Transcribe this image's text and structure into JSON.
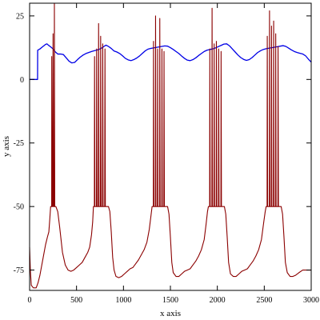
{
  "chart_data": {
    "type": "line",
    "title": "",
    "xlabel": "x axis",
    "ylabel": "y axis",
    "xlim": [
      0,
      3000
    ],
    "ylim": [
      -83,
      30
    ],
    "xticks": [
      0,
      500,
      1000,
      1500,
      2000,
      2500,
      3000
    ],
    "yticks": [
      25,
      0,
      -25,
      -50,
      -75
    ],
    "grid": false,
    "legend": "none",
    "series": [
      {
        "color": "#0000e6",
        "points": [
          [
            0,
            0
          ],
          [
            85,
            0
          ],
          [
            86,
            11.5
          ],
          [
            110,
            12
          ],
          [
            130,
            12.6
          ],
          [
            150,
            13.2
          ],
          [
            170,
            13.8
          ],
          [
            185,
            14.0
          ],
          [
            200,
            13.5
          ],
          [
            225,
            12.8
          ],
          [
            250,
            12.0
          ],
          [
            275,
            10.8
          ],
          [
            300,
            10.0
          ],
          [
            330,
            10.0
          ],
          [
            360,
            9.8
          ],
          [
            390,
            8.5
          ],
          [
            420,
            7.2
          ],
          [
            450,
            6.5
          ],
          [
            480,
            6.7
          ],
          [
            510,
            7.8
          ],
          [
            540,
            8.8
          ],
          [
            570,
            9.6
          ],
          [
            600,
            10.2
          ],
          [
            630,
            10.6
          ],
          [
            660,
            11.0
          ],
          [
            690,
            11.3
          ],
          [
            720,
            11.6
          ],
          [
            750,
            12.0
          ],
          [
            775,
            12.5
          ],
          [
            800,
            13.2
          ],
          [
            815,
            13.5
          ],
          [
            840,
            13.0
          ],
          [
            870,
            12.2
          ],
          [
            900,
            11.2
          ],
          [
            930,
            10.8
          ],
          [
            960,
            10.2
          ],
          [
            990,
            9.3
          ],
          [
            1020,
            8.3
          ],
          [
            1050,
            7.7
          ],
          [
            1080,
            7.4
          ],
          [
            1110,
            7.8
          ],
          [
            1140,
            8.4
          ],
          [
            1170,
            9.2
          ],
          [
            1200,
            10.2
          ],
          [
            1230,
            11.2
          ],
          [
            1260,
            11.9
          ],
          [
            1290,
            12.2
          ],
          [
            1320,
            12.4
          ],
          [
            1350,
            12.6
          ],
          [
            1380,
            12.8
          ],
          [
            1410,
            13.0
          ],
          [
            1440,
            13.2
          ],
          [
            1470,
            13.1
          ],
          [
            1500,
            12.5
          ],
          [
            1530,
            11.8
          ],
          [
            1560,
            11.0
          ],
          [
            1590,
            10.2
          ],
          [
            1620,
            9.2
          ],
          [
            1650,
            8.3
          ],
          [
            1680,
            7.6
          ],
          [
            1710,
            7.4
          ],
          [
            1740,
            7.8
          ],
          [
            1770,
            8.5
          ],
          [
            1800,
            9.4
          ],
          [
            1830,
            10.2
          ],
          [
            1860,
            11.0
          ],
          [
            1890,
            11.5
          ],
          [
            1920,
            11.8
          ],
          [
            1950,
            12.0
          ],
          [
            1980,
            12.4
          ],
          [
            2010,
            12.9
          ],
          [
            2040,
            13.4
          ],
          [
            2070,
            13.9
          ],
          [
            2100,
            14.0
          ],
          [
            2130,
            13.2
          ],
          [
            2160,
            12.0
          ],
          [
            2190,
            10.8
          ],
          [
            2220,
            9.6
          ],
          [
            2250,
            8.6
          ],
          [
            2280,
            7.9
          ],
          [
            2310,
            7.5
          ],
          [
            2340,
            7.8
          ],
          [
            2370,
            8.6
          ],
          [
            2400,
            9.6
          ],
          [
            2430,
            10.6
          ],
          [
            2460,
            11.3
          ],
          [
            2490,
            11.8
          ],
          [
            2520,
            12.1
          ],
          [
            2550,
            12.3
          ],
          [
            2580,
            12.5
          ],
          [
            2610,
            12.7
          ],
          [
            2640,
            12.9
          ],
          [
            2670,
            13.1
          ],
          [
            2700,
            13.3
          ],
          [
            2730,
            13.0
          ],
          [
            2760,
            12.3
          ],
          [
            2790,
            11.6
          ],
          [
            2820,
            11.0
          ],
          [
            2850,
            10.6
          ],
          [
            2880,
            10.3
          ],
          [
            2910,
            10.0
          ],
          [
            2940,
            9.3
          ],
          [
            2970,
            8.0
          ],
          [
            3000,
            6.8
          ]
        ]
      },
      {
        "color": "#8b0000",
        "points": [
          [
            0,
            -66
          ],
          [
            8,
            -75
          ],
          [
            18,
            -81
          ],
          [
            40,
            -82
          ],
          [
            70,
            -82
          ],
          [
            90,
            -80
          ],
          [
            110,
            -77
          ],
          [
            130,
            -73
          ],
          [
            150,
            -69
          ],
          [
            170,
            -65
          ],
          [
            190,
            -62
          ],
          [
            205,
            -60
          ],
          [
            215,
            -55
          ],
          [
            224,
            -50
          ],
          [
            235,
            -50
          ],
          [
            236,
            9
          ],
          [
            240,
            -50
          ],
          [
            246,
            -50
          ],
          [
            250,
            18
          ],
          [
            254,
            -50
          ],
          [
            262,
            -50
          ],
          [
            264,
            30
          ],
          [
            268,
            -50
          ],
          [
            280,
            -50
          ],
          [
            300,
            -52
          ],
          [
            320,
            -58
          ],
          [
            350,
            -68
          ],
          [
            380,
            -73
          ],
          [
            410,
            -75
          ],
          [
            440,
            -75.5
          ],
          [
            470,
            -75
          ],
          [
            500,
            -74
          ],
          [
            530,
            -73
          ],
          [
            560,
            -72
          ],
          [
            590,
            -70
          ],
          [
            620,
            -68
          ],
          [
            640,
            -66
          ],
          [
            660,
            -61
          ],
          [
            672,
            -56
          ],
          [
            680,
            -50
          ],
          [
            690,
            -50
          ],
          [
            692,
            9
          ],
          [
            696,
            -50
          ],
          [
            712,
            -50
          ],
          [
            714,
            12
          ],
          [
            718,
            -50
          ],
          [
            732,
            -50
          ],
          [
            735,
            22
          ],
          [
            739,
            -50
          ],
          [
            754,
            -50
          ],
          [
            757,
            17
          ],
          [
            761,
            -50
          ],
          [
            776,
            -50
          ],
          [
            779,
            14
          ],
          [
            783,
            -50
          ],
          [
            800,
            -50
          ],
          [
            803,
            12
          ],
          [
            807,
            -50
          ],
          [
            840,
            -50
          ],
          [
            855,
            -52
          ],
          [
            870,
            -60
          ],
          [
            885,
            -70
          ],
          [
            900,
            -75
          ],
          [
            920,
            -77.5
          ],
          [
            950,
            -78
          ],
          [
            980,
            -77.5
          ],
          [
            1010,
            -76.5
          ],
          [
            1040,
            -75.5
          ],
          [
            1070,
            -74.5
          ],
          [
            1100,
            -74
          ],
          [
            1130,
            -72.5
          ],
          [
            1160,
            -71
          ],
          [
            1190,
            -69
          ],
          [
            1220,
            -67
          ],
          [
            1250,
            -64
          ],
          [
            1275,
            -59
          ],
          [
            1295,
            -53
          ],
          [
            1305,
            -50
          ],
          [
            1318,
            -50
          ],
          [
            1320,
            15
          ],
          [
            1324,
            -50
          ],
          [
            1340,
            -50
          ],
          [
            1342,
            25
          ],
          [
            1346,
            -50
          ],
          [
            1362,
            -50
          ],
          [
            1364,
            12
          ],
          [
            1368,
            -50
          ],
          [
            1385,
            -50
          ],
          [
            1387,
            24
          ],
          [
            1391,
            -50
          ],
          [
            1408,
            -50
          ],
          [
            1410,
            12
          ],
          [
            1414,
            -50
          ],
          [
            1430,
            -50
          ],
          [
            1432,
            11
          ],
          [
            1436,
            -50
          ],
          [
            1470,
            -50
          ],
          [
            1485,
            -53
          ],
          [
            1500,
            -62
          ],
          [
            1515,
            -72
          ],
          [
            1530,
            -76
          ],
          [
            1560,
            -77.5
          ],
          [
            1590,
            -77.5
          ],
          [
            1620,
            -76.5
          ],
          [
            1650,
            -75.5
          ],
          [
            1680,
            -75
          ],
          [
            1710,
            -74.5
          ],
          [
            1740,
            -73
          ],
          [
            1770,
            -71.5
          ],
          [
            1800,
            -69.5
          ],
          [
            1830,
            -67
          ],
          [
            1860,
            -63
          ],
          [
            1880,
            -57
          ],
          [
            1895,
            -52
          ],
          [
            1905,
            -50
          ],
          [
            1918,
            -50
          ],
          [
            1920,
            12
          ],
          [
            1924,
            -50
          ],
          [
            1942,
            -50
          ],
          [
            1944,
            28
          ],
          [
            1948,
            -50
          ],
          [
            1964,
            -50
          ],
          [
            1966,
            14
          ],
          [
            1970,
            -50
          ],
          [
            1988,
            -50
          ],
          [
            1990,
            15
          ],
          [
            1994,
            -50
          ],
          [
            2012,
            -50
          ],
          [
            2014,
            12
          ],
          [
            2018,
            -50
          ],
          [
            2038,
            -50
          ],
          [
            2040,
            11
          ],
          [
            2044,
            -50
          ],
          [
            2075,
            -50
          ],
          [
            2090,
            -53
          ],
          [
            2105,
            -62
          ],
          [
            2120,
            -72
          ],
          [
            2140,
            -76.5
          ],
          [
            2170,
            -77.5
          ],
          [
            2200,
            -77.5
          ],
          [
            2230,
            -76.5
          ],
          [
            2260,
            -75.5
          ],
          [
            2290,
            -75
          ],
          [
            2320,
            -74.5
          ],
          [
            2350,
            -73
          ],
          [
            2380,
            -71.5
          ],
          [
            2410,
            -69.5
          ],
          [
            2440,
            -67
          ],
          [
            2470,
            -63
          ],
          [
            2495,
            -56
          ],
          [
            2510,
            -52
          ],
          [
            2520,
            -50
          ],
          [
            2530,
            -50
          ],
          [
            2532,
            17
          ],
          [
            2536,
            -50
          ],
          [
            2554,
            -50
          ],
          [
            2556,
            27
          ],
          [
            2560,
            -50
          ],
          [
            2575,
            -50
          ],
          [
            2577,
            21
          ],
          [
            2581,
            -50
          ],
          [
            2598,
            -50
          ],
          [
            2600,
            23
          ],
          [
            2604,
            -50
          ],
          [
            2620,
            -50
          ],
          [
            2622,
            18
          ],
          [
            2626,
            -50
          ],
          [
            2645,
            -50
          ],
          [
            2647,
            13
          ],
          [
            2651,
            -50
          ],
          [
            2680,
            -50
          ],
          [
            2695,
            -53
          ],
          [
            2710,
            -62
          ],
          [
            2725,
            -72
          ],
          [
            2745,
            -76
          ],
          [
            2775,
            -77.5
          ],
          [
            2805,
            -77.5
          ],
          [
            2835,
            -77
          ],
          [
            2870,
            -76
          ],
          [
            2910,
            -75
          ],
          [
            2950,
            -75
          ],
          [
            2980,
            -75
          ],
          [
            3000,
            -75
          ]
        ]
      }
    ]
  }
}
